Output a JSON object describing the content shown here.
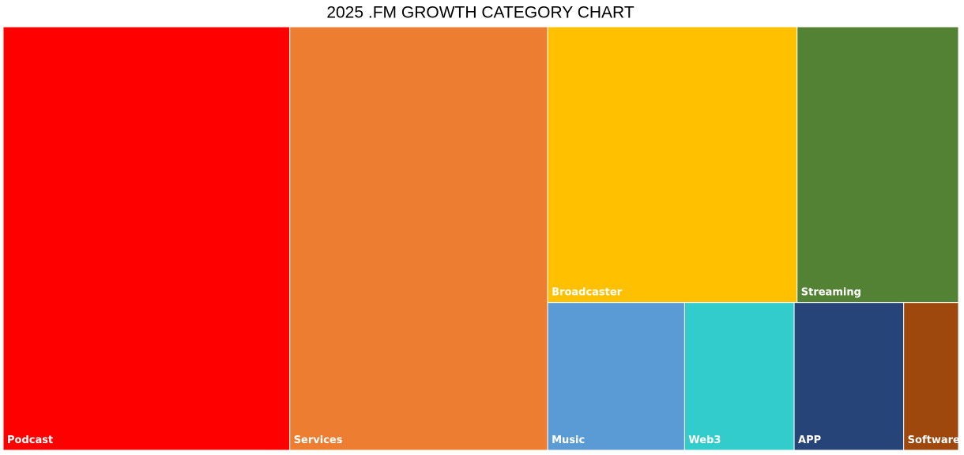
{
  "chart_data": {
    "type": "treemap",
    "title": "2025 .FM GROWTH CATEGORY CHART",
    "categories": [
      "Podcast",
      "Services",
      "Broadcaster",
      "Streaming",
      "Music",
      "Web3",
      "APP",
      "Software"
    ],
    "values": [
      30,
      27,
      17,
      11,
      5,
      4,
      4,
      2
    ],
    "colors": [
      "#ff0000",
      "#ed7d31",
      "#ffc000",
      "#548235",
      "#5b9bd5",
      "#33cccc",
      "#264478",
      "#9e480e"
    ]
  }
}
